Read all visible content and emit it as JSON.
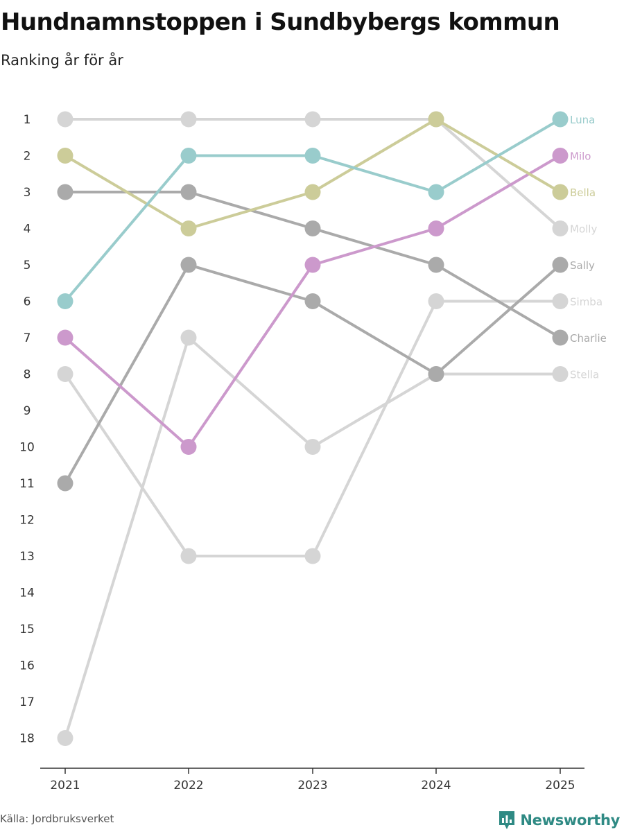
{
  "header": {
    "title": "Hundnamnstoppen i Sundbybergs kommun",
    "subtitle": "Ranking år för år"
  },
  "footer": {
    "source": "Källa: Jordbruksverket",
    "brand": "Newsworthy"
  },
  "chart_data": {
    "type": "line",
    "subtype": "bump",
    "title": "Hundnamnstoppen i Sundbybergs kommun",
    "subtitle": "Ranking år för år",
    "x": [
      "2021",
      "2022",
      "2023",
      "2024",
      "2025"
    ],
    "y_ticks": [
      "1",
      "2",
      "3",
      "4",
      "5",
      "6",
      "7",
      "8",
      "9",
      "10",
      "11",
      "12",
      "13",
      "14",
      "15",
      "16",
      "17",
      "18"
    ],
    "ylim": [
      1,
      18
    ],
    "y_inverted": true,
    "series": [
      {
        "name": "Stella",
        "values": [
          18,
          7,
          10,
          8,
          8
        ],
        "color": "#d5d5d5"
      },
      {
        "name": "Simba",
        "values": [
          8,
          13,
          13,
          6,
          6
        ],
        "color": "#d5d5d5"
      },
      {
        "name": "Molly",
        "values": [
          1,
          1,
          1,
          1,
          4
        ],
        "color": "#d5d5d5"
      },
      {
        "name": "Sally",
        "values": [
          11,
          5,
          6,
          8,
          5
        ],
        "color": "#aaaaaa"
      },
      {
        "name": "Charlie",
        "values": [
          3,
          3,
          4,
          5,
          7
        ],
        "color": "#aaaaaa"
      },
      {
        "name": "Milo",
        "values": [
          7,
          10,
          5,
          4,
          2
        ],
        "color": "#cc99cc"
      },
      {
        "name": "Bella",
        "values": [
          2,
          4,
          3,
          1,
          3
        ],
        "color": "#cccc99"
      },
      {
        "name": "Luna",
        "values": [
          6,
          2,
          2,
          3,
          1
        ],
        "color": "#99cccc"
      }
    ]
  }
}
